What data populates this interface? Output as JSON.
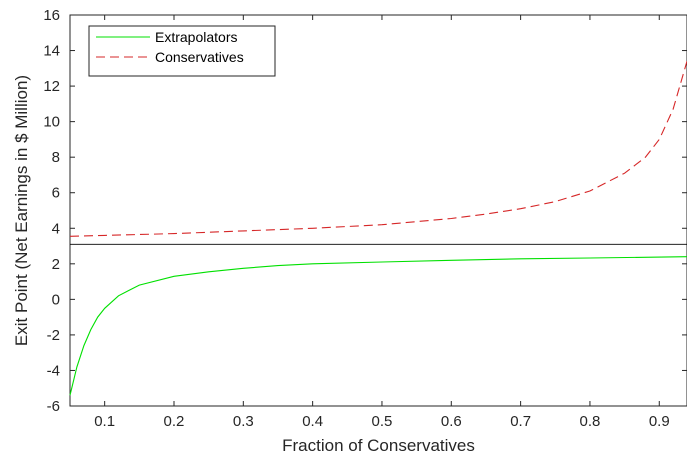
{
  "chart_data": {
    "type": "line",
    "title": "",
    "xlabel": "Fraction of Conservatives",
    "ylabel": "Exit Point (Net Earnings in $ Million)",
    "xlim": [
      0.05,
      0.94
    ],
    "ylim": [
      -6,
      16
    ],
    "xticks": [
      0.1,
      0.2,
      0.3,
      0.4,
      0.5,
      0.6,
      0.7,
      0.8,
      0.9
    ],
    "yticks": [
      -6,
      -4,
      -2,
      0,
      2,
      4,
      6,
      8,
      10,
      12,
      14,
      16
    ],
    "xtick_labels": [
      "0.1",
      "0.2",
      "0.3",
      "0.4",
      "0.5",
      "0.6",
      "0.7",
      "0.8",
      "0.9"
    ],
    "ytick_labels": [
      "-6",
      "-4",
      "-2",
      "0",
      "2",
      "4",
      "6",
      "8",
      "10",
      "12",
      "14",
      "16"
    ],
    "grid": false,
    "legend_position": "top-left",
    "series": [
      {
        "name": "Extrapolators",
        "color": "#00e000",
        "style": "solid",
        "x": [
          0.05,
          0.06,
          0.07,
          0.08,
          0.09,
          0.1,
          0.12,
          0.15,
          0.2,
          0.25,
          0.3,
          0.35,
          0.4,
          0.5,
          0.6,
          0.7,
          0.8,
          0.94
        ],
        "y": [
          -5.4,
          -3.8,
          -2.6,
          -1.7,
          -1.0,
          -0.5,
          0.2,
          0.8,
          1.3,
          1.55,
          1.75,
          1.9,
          2.0,
          2.1,
          2.2,
          2.28,
          2.33,
          2.4
        ]
      },
      {
        "name": "Conservatives",
        "color": "#d62728",
        "style": "dashed",
        "x": [
          0.05,
          0.1,
          0.2,
          0.3,
          0.4,
          0.5,
          0.6,
          0.65,
          0.7,
          0.75,
          0.8,
          0.85,
          0.88,
          0.9,
          0.92,
          0.94
        ],
        "y": [
          3.55,
          3.6,
          3.7,
          3.85,
          4.0,
          4.2,
          4.55,
          4.8,
          5.1,
          5.5,
          6.1,
          7.1,
          8.0,
          9.0,
          10.7,
          13.4
        ]
      },
      {
        "name": "",
        "color": "#000000",
        "style": "solid",
        "x": [
          0.05,
          0.94
        ],
        "y": [
          3.1,
          3.1
        ]
      }
    ]
  }
}
